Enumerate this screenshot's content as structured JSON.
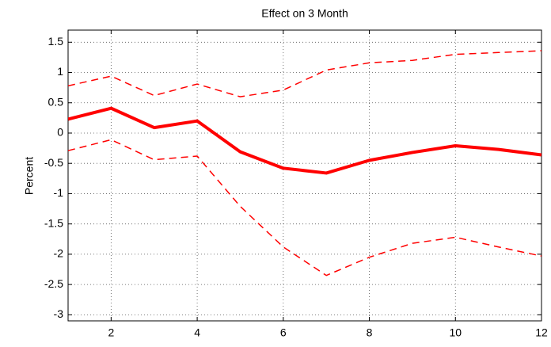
{
  "chart_data": {
    "type": "line",
    "title": "Effect on 3 Month",
    "ylabel": "Percent",
    "x": [
      1,
      2,
      3,
      4,
      5,
      6,
      7,
      8,
      9,
      10,
      11,
      12
    ],
    "series": [
      {
        "color": "#ff0000",
        "linestyle": "solid",
        "values": [
          0.23,
          0.41,
          0.09,
          0.2,
          -0.31,
          -0.58,
          -0.66,
          -0.45,
          -0.32,
          -0.21,
          -0.27,
          -0.36
        ]
      },
      {
        "color": "#ff0000",
        "linestyle": "dashed",
        "values": [
          0.78,
          0.94,
          0.62,
          0.81,
          0.6,
          0.71,
          1.04,
          1.16,
          1.2,
          1.3,
          1.33,
          1.36
        ]
      },
      {
        "color": "#ff0000",
        "linestyle": "dashed",
        "values": [
          -0.29,
          -0.11,
          -0.44,
          -0.38,
          -1.21,
          -1.88,
          -2.35,
          -2.05,
          -1.82,
          -1.72,
          -1.88,
          -2.03
        ]
      }
    ],
    "xlim": [
      1,
      12
    ],
    "xticks": [
      2,
      4,
      6,
      8,
      10,
      12
    ],
    "ylim": [
      -3.1,
      1.7
    ],
    "yticks": [
      -3,
      -2.5,
      -2,
      -1.5,
      -1,
      -0.5,
      0,
      0.5,
      1,
      1.5
    ],
    "grid": true
  }
}
